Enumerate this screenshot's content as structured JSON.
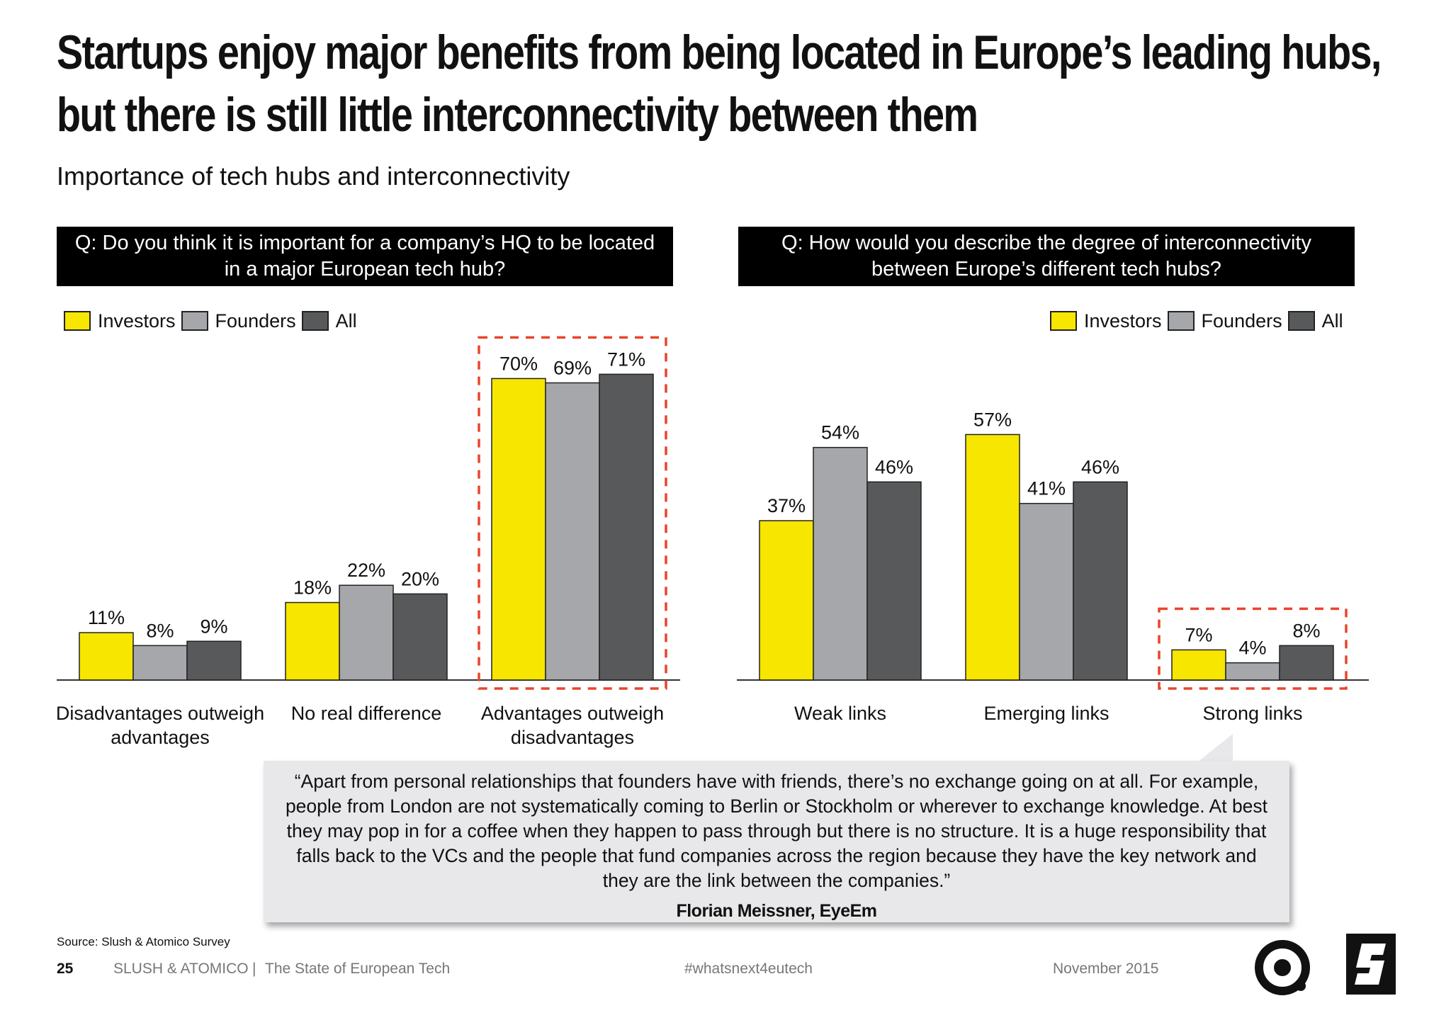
{
  "title": "Startups enjoy major benefits from being located in Europe’s leading hubs, but there is still little interconnectivity between them",
  "subtitle": "Importance of tech hubs and interconnectivity",
  "colors": {
    "investors": "#f7e600",
    "founders": "#a6a7aa",
    "all": "#58595b",
    "highlight": "#e8452c"
  },
  "legend": {
    "investors": "Investors",
    "founders": "Founders",
    "all": "All"
  },
  "chart_data": [
    {
      "type": "bar",
      "question": "Q: Do you think it is important for a company’s HQ to be located in a major European tech hub?",
      "categories": [
        "Disadvantages outweigh advantages",
        "No real difference",
        "Advantages outweigh disadvantages"
      ],
      "series": [
        {
          "name": "Investors",
          "values": [
            11,
            18,
            70
          ]
        },
        {
          "name": "Founders",
          "values": [
            8,
            22,
            69
          ]
        },
        {
          "name": "All",
          "values": [
            9,
            20,
            71
          ]
        }
      ],
      "value_suffix": "%",
      "highlighted_category": "Advantages outweigh disadvantages"
    },
    {
      "type": "bar",
      "question": "Q: How would you describe the degree of interconnectivity between Europe’s different tech hubs?",
      "categories": [
        "Weak links",
        "Emerging links",
        "Strong links"
      ],
      "series": [
        {
          "name": "Investors",
          "values": [
            37,
            57,
            7
          ]
        },
        {
          "name": "Founders",
          "values": [
            54,
            41,
            4
          ]
        },
        {
          "name": "All",
          "values": [
            46,
            46,
            8
          ]
        }
      ],
      "value_suffix": "%",
      "highlighted_category": "Strong links"
    }
  ],
  "quote": {
    "text": "“Apart from personal relationships that founders have with friends, there’s no exchange going on at all. For example, people from London are not systematically coming to Berlin or Stockholm or wherever to exchange knowledge. At best they may pop in for a coffee when they happen to pass through but there is no structure. It is a huge responsibility that falls back to the VCs and the people that fund companies across the region because they have the key network and they are the link between the companies.”",
    "attribution": "Florian Meissner, EyeEm"
  },
  "source": "Source: Slush & Atomico Survey",
  "footer": {
    "page": "25",
    "publisher": "SLUSH & ATOMICO",
    "separator": "|",
    "report": "The State of European Tech",
    "hashtag": "#whatsnext4eutech",
    "date": "November 2015"
  }
}
